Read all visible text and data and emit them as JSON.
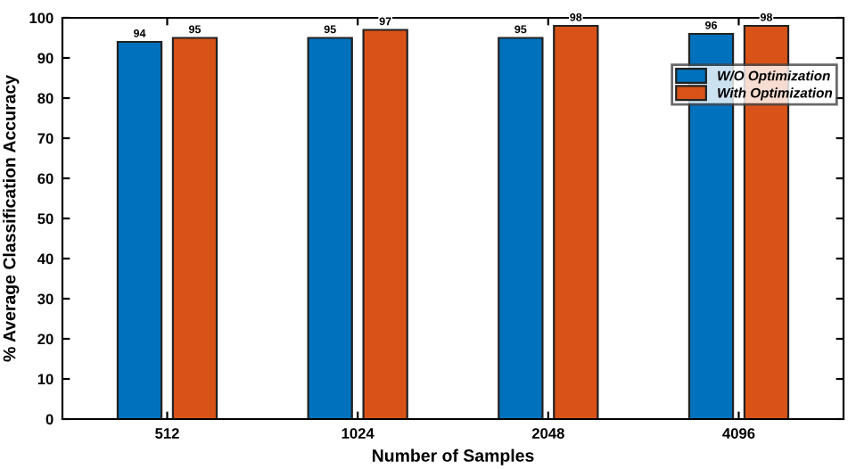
{
  "chart_data": {
    "type": "bar",
    "xlabel": "Number of Samples",
    "ylabel": "% Average Classification Accuracy",
    "categories": [
      "512",
      "1024",
      "2048",
      "4096"
    ],
    "series": [
      {
        "name": "W/O Optimization",
        "color": "#0072bd",
        "values": [
          94,
          95,
          95,
          96
        ]
      },
      {
        "name": "With Optimization",
        "color": "#d95319",
        "values": [
          95,
          97,
          98,
          98
        ]
      }
    ],
    "ylim": [
      0,
      100
    ],
    "yticks": [
      0,
      10,
      20,
      30,
      40,
      50,
      60,
      70,
      80,
      90,
      100
    ],
    "data_labels": true,
    "legend": "top right",
    "grid": false
  }
}
